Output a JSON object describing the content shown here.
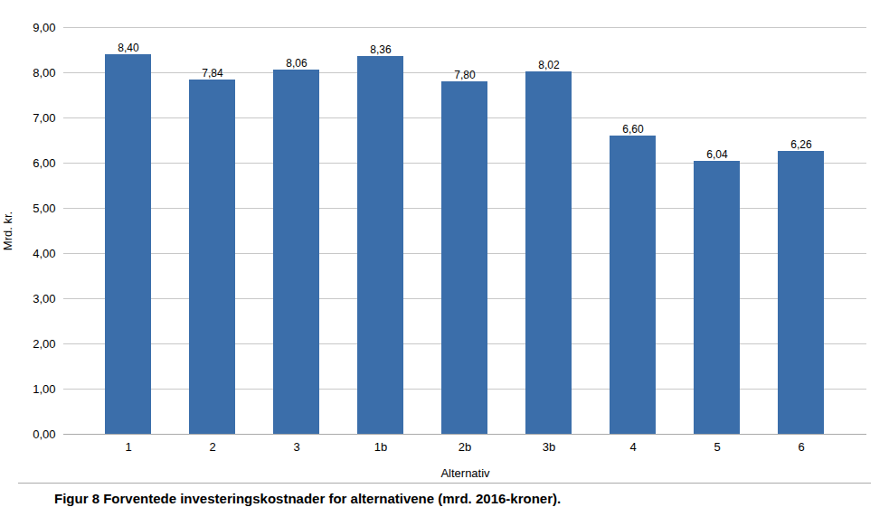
{
  "chart_data": {
    "type": "bar",
    "caption": "Figur 8  Forventede investeringskostnader for alternativene (mrd. 2016-kroner).",
    "xlabel": "Alternativ",
    "ylabel": "Mrd. kr.",
    "categories": [
      "1",
      "2",
      "3",
      "1b",
      "2b",
      "3b",
      "4",
      "5",
      "6"
    ],
    "values": [
      8.4,
      7.84,
      8.06,
      8.36,
      7.8,
      8.02,
      6.6,
      6.04,
      6.26
    ],
    "value_labels": [
      "8,40",
      "7,84",
      "8,06",
      "8,36",
      "7,80",
      "8,02",
      "6,60",
      "6,04",
      "6,26"
    ],
    "data_labels": true,
    "color": "#3B6EAA",
    "ylim": [
      0,
      9.0
    ],
    "yticks": [
      {
        "value": 0.0,
        "label": "0,00"
      },
      {
        "value": 1.0,
        "label": "1,00"
      },
      {
        "value": 2.0,
        "label": "2,00"
      },
      {
        "value": 3.0,
        "label": "3,00"
      },
      {
        "value": 4.0,
        "label": "4,00"
      },
      {
        "value": 5.0,
        "label": "5,00"
      },
      {
        "value": 6.0,
        "label": "6,00"
      },
      {
        "value": 7.0,
        "label": "7,00"
      },
      {
        "value": 8.0,
        "label": "8,00"
      },
      {
        "value": 9.0,
        "label": "9,00"
      }
    ],
    "grid": true
  }
}
